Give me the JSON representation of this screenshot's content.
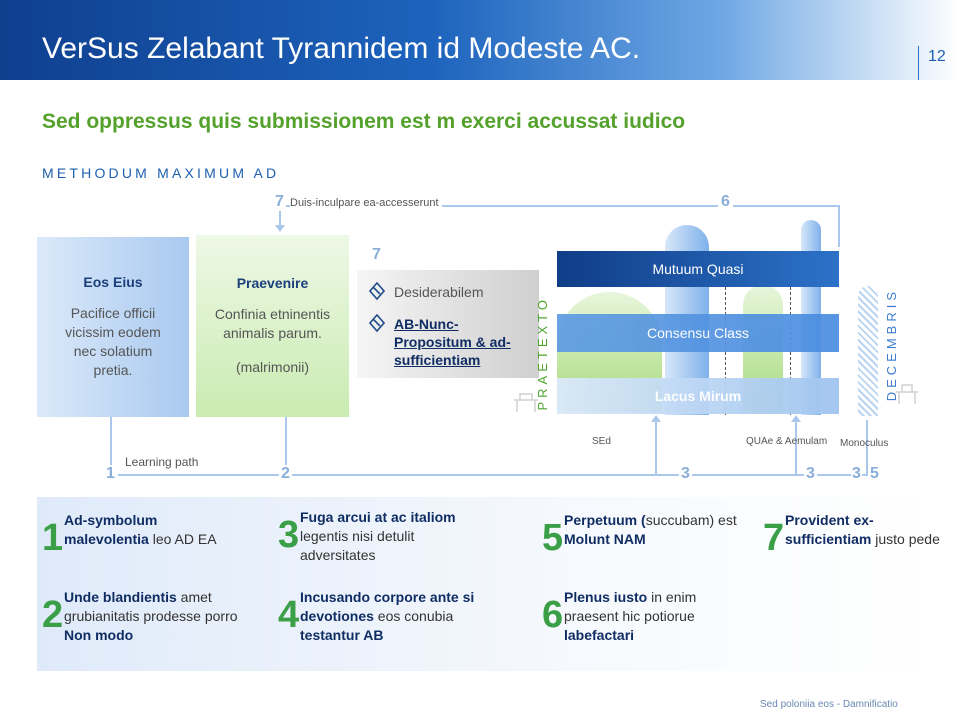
{
  "header": {
    "title": "VerSus Zelabant Tyrannidem id Modeste AC.",
    "page_number": "12"
  },
  "subtitle": "Sed oppressus quis submissionem est m exerci accussat iudico",
  "section_label": "METHODUM MAXIMUM AD",
  "top_labels": {
    "n7": "7",
    "flow7_text": "Duis-inculpare ea-accesserunt",
    "n6": "6"
  },
  "boxes": {
    "eos": {
      "title": "Eos Eius",
      "text": "Pacifice officii vicissim eodem nec solatium pretia."
    },
    "praevenire": {
      "title": "Praevenire",
      "text": "Confinia etninentis animalis parum.",
      "note": "(malrimonii)"
    },
    "desid": {
      "number": "7",
      "item1": "Desiderabilem",
      "item2": "AB-Nunc-Propositum & ad-sufficientiam"
    }
  },
  "stack": {
    "band1": "Mutuum Quasi",
    "band2": "Consensu Class",
    "band3": "Lacus Mirum",
    "left_vertical": "PRAETEXTO",
    "right_vertical": "DECEMBRIS"
  },
  "under_labels": {
    "sed": "SEd",
    "quae": "QUAe & Aemulam",
    "mono": "Monoculus"
  },
  "flow": {
    "learning_path": "Learning path",
    "n1": "1",
    "n2": "2",
    "n3a": "3",
    "n3b": "3",
    "n3c": "3",
    "n5": "5"
  },
  "legend": [
    {
      "num": "1",
      "html": "<b>Ad-symbolum malevolentia</b> leo AD EA"
    },
    {
      "num": "2",
      "html": "<b>Unde blandientis</b> amet grubianitatis prodesse porro <b>Non modo</b>"
    },
    {
      "num": "3",
      "html": "<b>Fuga arcui at ac italiom</b> legentis nisi detulit adversitates"
    },
    {
      "num": "4",
      "html": "<b>Incusando corpore ante si devotiones</b> eos conubia <b>testantur AB</b>"
    },
    {
      "num": "5",
      "html": "<b>Perpetuum (</b>succubam) est <b>Molunt NAM</b>"
    },
    {
      "num": "6",
      "html": "<b>Plenus iusto</b> in enim praesent hic potiorue <b>labefactari</b>"
    },
    {
      "num": "7",
      "html": "<b>Provident ex-sufficientiam</b> justo pede"
    }
  ],
  "footer": "Sed poloniia eos - Damnificatio"
}
